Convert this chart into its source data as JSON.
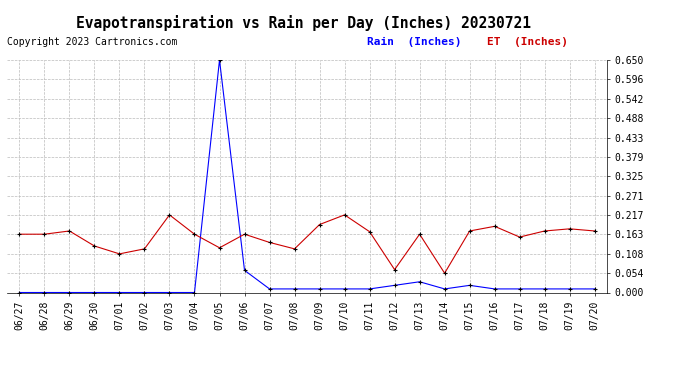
{
  "title": "Evapotranspiration vs Rain per Day (Inches) 20230721",
  "copyright": "Copyright 2023 Cartronics.com",
  "legend_rain": "Rain  (Inches)",
  "legend_et": "ET  (Inches)",
  "x_labels": [
    "06/27",
    "06/28",
    "06/29",
    "06/30",
    "07/01",
    "07/02",
    "07/03",
    "07/04",
    "07/05",
    "07/06",
    "07/07",
    "07/08",
    "07/09",
    "07/10",
    "07/11",
    "07/12",
    "07/13",
    "07/14",
    "07/15",
    "07/16",
    "07/17",
    "07/18",
    "07/19",
    "07/20"
  ],
  "rain_data": [
    0.0,
    0.0,
    0.0,
    0.0,
    0.0,
    0.0,
    0.0,
    0.0,
    0.65,
    0.062,
    0.01,
    0.01,
    0.01,
    0.01,
    0.01,
    0.02,
    0.03,
    0.01,
    0.02,
    0.01,
    0.01,
    0.01,
    0.01,
    0.01
  ],
  "et_data": [
    0.163,
    0.163,
    0.172,
    0.13,
    0.108,
    0.122,
    0.217,
    0.163,
    0.125,
    0.163,
    0.14,
    0.122,
    0.19,
    0.217,
    0.17,
    0.064,
    0.163,
    0.054,
    0.172,
    0.185,
    0.155,
    0.172,
    0.178,
    0.172
  ],
  "rain_color": "#0000ff",
  "et_color": "#cc0000",
  "ylim_min": 0.0,
  "ylim_max": 0.65,
  "yticks": [
    0.0,
    0.054,
    0.108,
    0.163,
    0.217,
    0.271,
    0.325,
    0.379,
    0.433,
    0.488,
    0.542,
    0.596,
    0.65
  ],
  "bg_color": "#ffffff",
  "grid_color": "#bbbbbb",
  "title_fontsize": 10.5,
  "copyright_fontsize": 7,
  "legend_fontsize": 8,
  "tick_fontsize": 7
}
